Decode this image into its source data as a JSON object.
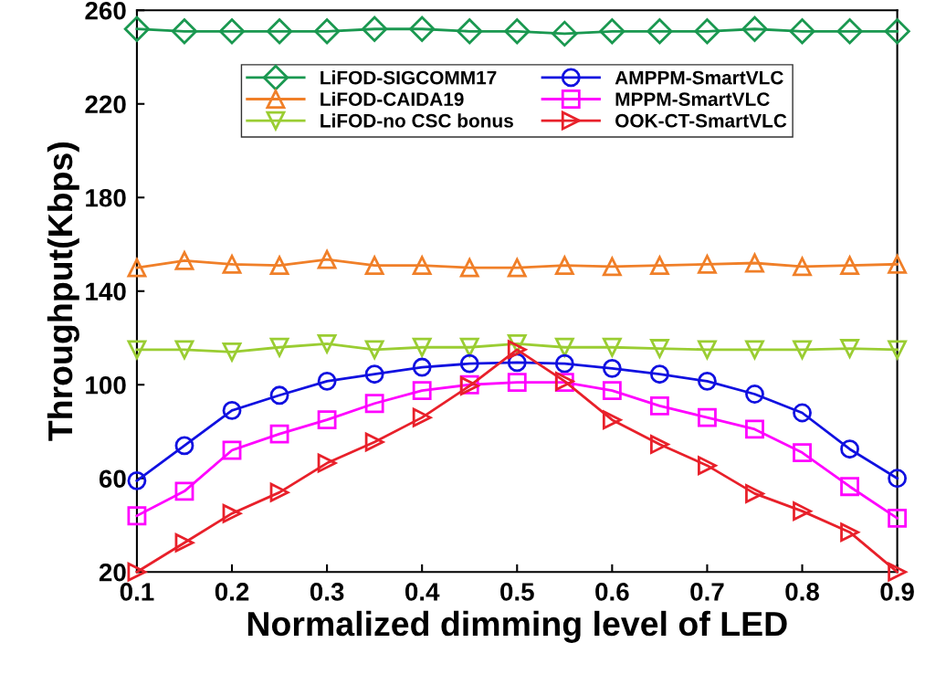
{
  "chart_data": {
    "type": "line",
    "xlabel": "Normalized dimming level of LED",
    "ylabel": "Throughput(Kbps)",
    "x": [
      0.1,
      0.15,
      0.2,
      0.25,
      0.3,
      0.35,
      0.4,
      0.45,
      0.5,
      0.55,
      0.6,
      0.65,
      0.7,
      0.75,
      0.8,
      0.85,
      0.9
    ],
    "series": [
      {
        "name": "LiFOD-SIGCOMM17",
        "color": "#1a9850",
        "marker": "diamond",
        "values": [
          252,
          251,
          251,
          251,
          251,
          252,
          252,
          251,
          251,
          250,
          251,
          251,
          251,
          252,
          251,
          251,
          251
        ]
      },
      {
        "name": "LiFOD-CAIDA19",
        "color": "#f07f28",
        "marker": "triangle",
        "values": [
          150,
          153,
          151.5,
          151,
          153.5,
          151,
          151,
          150,
          150,
          151,
          150.5,
          151,
          151.5,
          152,
          150.5,
          151,
          151.5
        ]
      },
      {
        "name": "LiFOD-no CSC bonus",
        "color": "#9acd32",
        "marker": "triangle_down",
        "values": [
          115,
          115,
          114,
          116,
          117.5,
          115,
          116,
          116,
          117.5,
          116,
          116,
          115.5,
          115,
          115,
          115,
          115.5,
          115
        ]
      },
      {
        "name": "AMPPM-SmartVLC",
        "color": "#1010e0",
        "marker": "circle",
        "values": [
          59,
          74,
          89,
          95.5,
          101.5,
          104.5,
          107.5,
          109,
          109.5,
          109,
          107,
          104.5,
          101.5,
          96,
          88,
          72.5,
          60
        ]
      },
      {
        "name": "MPPM-SmartVLC",
        "color": "#ff00ff",
        "marker": "square",
        "values": [
          44,
          54.5,
          72,
          79,
          85,
          92,
          97.5,
          100,
          101,
          101,
          97.5,
          91,
          86,
          81,
          71,
          56.5,
          43
        ]
      },
      {
        "name": "OOK-CT-SmartVLC",
        "color": "#e8202a",
        "marker": "triangle_right",
        "values": [
          20,
          32.5,
          45,
          54,
          66.5,
          75.5,
          86,
          99.5,
          115,
          101.5,
          85,
          74.5,
          65.5,
          53.5,
          46,
          37,
          20
        ]
      }
    ],
    "xlim": [
      0.1,
      0.9
    ],
    "xticks": [
      0.1,
      0.2,
      0.3,
      0.4,
      0.5,
      0.6,
      0.7,
      0.8,
      0.9
    ],
    "ylim": [
      20,
      260
    ],
    "yticks": [
      20,
      60,
      100,
      140,
      180,
      220,
      260
    ],
    "grid": false,
    "legend": "top",
    "line_style": "solid"
  }
}
